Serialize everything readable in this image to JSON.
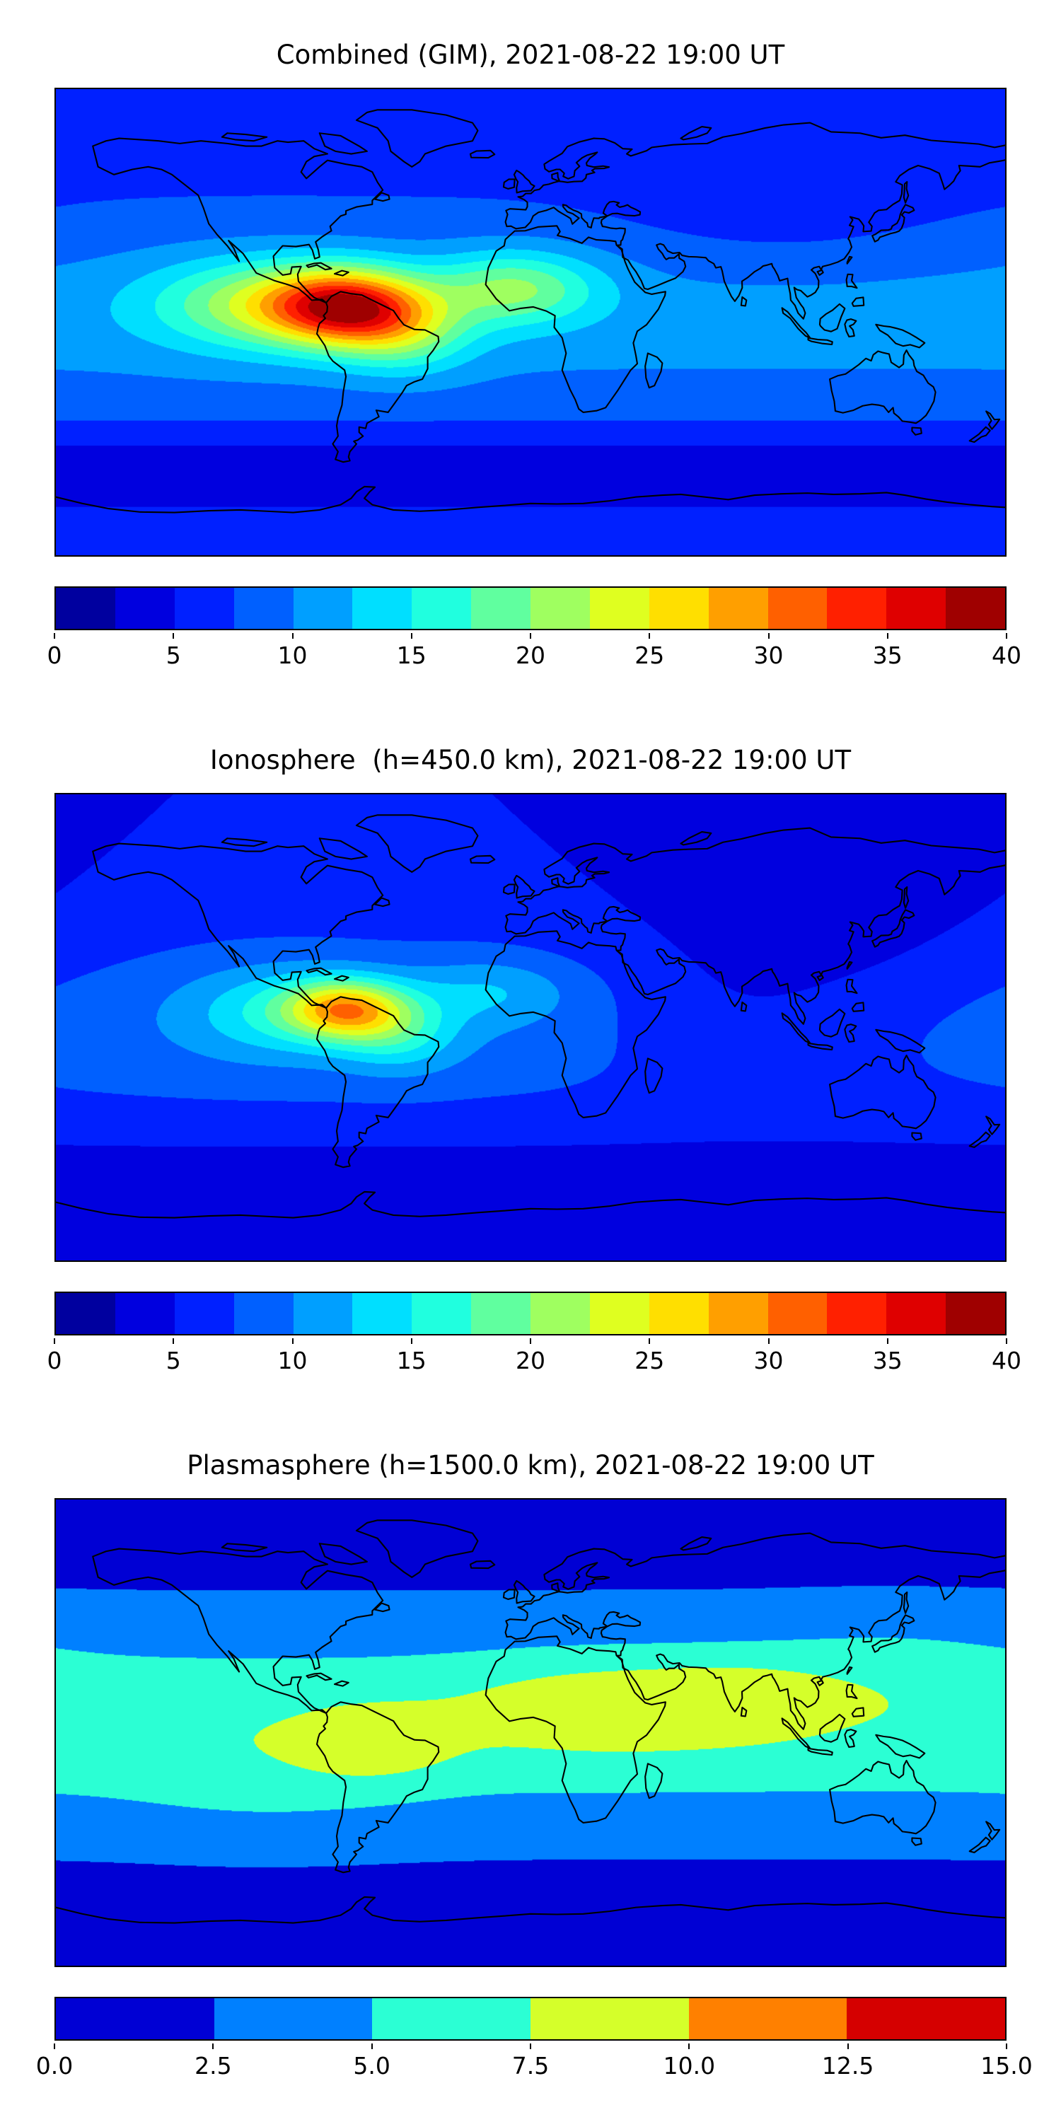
{
  "figure": {
    "type": "multi-panel global TEC contour figure",
    "background": "#ffffff",
    "text_color": "#000000",
    "colormap": "jet"
  },
  "panels": [
    {
      "id": "combined",
      "title": "Combined (GIM), 2021-08-22 19:00 UT",
      "colorbar": {
        "min": 0,
        "max": 40,
        "step": 2.5,
        "segments": 16,
        "tick_labels": [
          "0",
          "5",
          "10",
          "15",
          "20",
          "25",
          "30",
          "35",
          "40"
        ]
      }
    },
    {
      "id": "ionosphere",
      "title": "Ionosphere  (h=450.0 km), 2021-08-22 19:00 UT",
      "colorbar": {
        "min": 0,
        "max": 40,
        "step": 2.5,
        "segments": 16,
        "tick_labels": [
          "0",
          "5",
          "10",
          "15",
          "20",
          "25",
          "30",
          "35",
          "40"
        ]
      }
    },
    {
      "id": "plasmasphere",
      "title": "Plasmasphere (h=1500.0 km), 2021-08-22 19:00 UT",
      "colorbar": {
        "min": 0,
        "max": 15,
        "step": 2.5,
        "segments": 6,
        "tick_labels": [
          "0.0",
          "2.5",
          "5.0",
          "7.5",
          "10.0",
          "12.5",
          "15.0"
        ]
      }
    }
  ],
  "chart_data": [
    {
      "type": "heatmap",
      "title": "Combined (GIM), 2021-08-22 19:00 UT",
      "projection": "equirectangular",
      "lon_range": [
        -180,
        180
      ],
      "lat_range": [
        -90,
        90
      ],
      "colormap": "jet",
      "levels": {
        "min": 0,
        "max": 40,
        "step": 2.5
      },
      "colorbar_ticks": [
        0,
        5,
        10,
        15,
        20,
        25,
        30,
        35,
        40
      ],
      "peak": {
        "lon": -70,
        "lat": 6,
        "value": 40
      },
      "secondary_peak": {
        "lon": -6,
        "lat": 13,
        "value": 21
      },
      "field_model": {
        "base": 6,
        "components": [
          {
            "type": "zonal",
            "clat": 2,
            "sy": 30,
            "amp": 5
          },
          {
            "type": "zonal",
            "clat": -57,
            "sy": 10,
            "amp": -3.5
          },
          {
            "type": "gauss",
            "clon": 95,
            "clat": 42,
            "sx": 45,
            "sy": 18,
            "amp": -2
          },
          {
            "type": "gauss",
            "clon": -70,
            "clat": 6,
            "sx": 20,
            "sy": 10,
            "amp": 21
          },
          {
            "type": "gauss",
            "clon": -100,
            "clat": 7,
            "sx": 30,
            "sy": 12,
            "amp": 11
          },
          {
            "type": "gauss",
            "clon": -48,
            "clat": -4,
            "sx": 18,
            "sy": 11,
            "amp": 8
          },
          {
            "type": "gauss",
            "clon": -6,
            "clat": 13,
            "sx": 22,
            "sy": 10,
            "amp": 10
          }
        ]
      }
    },
    {
      "type": "heatmap",
      "title": "Ionosphere  (h=450.0 km), 2021-08-22 19:00 UT",
      "projection": "equirectangular",
      "lon_range": [
        -180,
        180
      ],
      "lat_range": [
        -90,
        90
      ],
      "colormap": "jet",
      "levels": {
        "min": 0,
        "max": 40,
        "step": 2.5
      },
      "colorbar_ticks": [
        0,
        5,
        10,
        15,
        20,
        25,
        30,
        35,
        40
      ],
      "peak": {
        "lon": -70,
        "lat": 7,
        "value": 31
      },
      "field_model": {
        "base": 5,
        "components": [
          {
            "type": "zonal",
            "clat": 2,
            "sy": 28,
            "amp": 4.5
          },
          {
            "type": "zonal",
            "clat": -60,
            "sy": 12,
            "amp": -2
          },
          {
            "type": "gauss",
            "clon": 105,
            "clat": 22,
            "sx": 58,
            "sy": 30,
            "amp": -3.5
          },
          {
            "type": "gauss",
            "clon": 70,
            "clat": 0,
            "sx": 35,
            "sy": 18,
            "amp": -1.5
          },
          {
            "type": "gauss",
            "clon": -70,
            "clat": 7,
            "sx": 16,
            "sy": 8,
            "amp": 17
          },
          {
            "type": "gauss",
            "clon": -97,
            "clat": 6,
            "sx": 24,
            "sy": 12,
            "amp": 5.5
          },
          {
            "type": "gauss",
            "clon": -50,
            "clat": -3,
            "sx": 16,
            "sy": 10,
            "amp": 6
          },
          {
            "type": "gauss",
            "clon": -15,
            "clat": 14,
            "sx": 22,
            "sy": 9,
            "amp": 4
          }
        ]
      }
    },
    {
      "type": "heatmap",
      "title": "Plasmasphere (h=1500.0 km), 2021-08-22 19:00 UT",
      "projection": "equirectangular",
      "lon_range": [
        -180,
        180
      ],
      "lat_range": [
        -90,
        90
      ],
      "colormap": "jet",
      "levels": {
        "min": 0,
        "max": 15,
        "step": 2.5
      },
      "colorbar_ticks": [
        0,
        2.5,
        5,
        7.5,
        10,
        12.5,
        15
      ],
      "peak": {
        "lon": 30,
        "lat": 12,
        "value": 10
      },
      "secondary_peak": {
        "lon": -58,
        "lat": -5,
        "value": 9
      },
      "field_model": {
        "base": 1.8,
        "components": [
          {
            "type": "zonal",
            "clat": 3,
            "sy": 26,
            "amp": 5.2
          },
          {
            "type": "zonal",
            "clat": 90,
            "sy": 12,
            "amp": -0.4
          },
          {
            "type": "zonal",
            "clat": -90,
            "sy": 12,
            "amp": -0.4
          },
          {
            "type": "gauss",
            "clon": 30,
            "clat": 12,
            "sx": 38,
            "sy": 13,
            "amp": 2.6
          },
          {
            "type": "gauss",
            "clon": 80,
            "clat": 15,
            "sx": 25,
            "sy": 11,
            "amp": 1.6
          },
          {
            "type": "gauss",
            "clon": -58,
            "clat": -5,
            "sx": 20,
            "sy": 10,
            "amp": 2.3
          },
          {
            "type": "gauss",
            "clon": 135,
            "clat": 27,
            "sx": 35,
            "sy": 13,
            "amp": 1.2
          },
          {
            "type": "gauss",
            "clon": -100,
            "clat": -22,
            "sx": 38,
            "sy": 15,
            "amp": 1.1
          }
        ]
      }
    }
  ]
}
